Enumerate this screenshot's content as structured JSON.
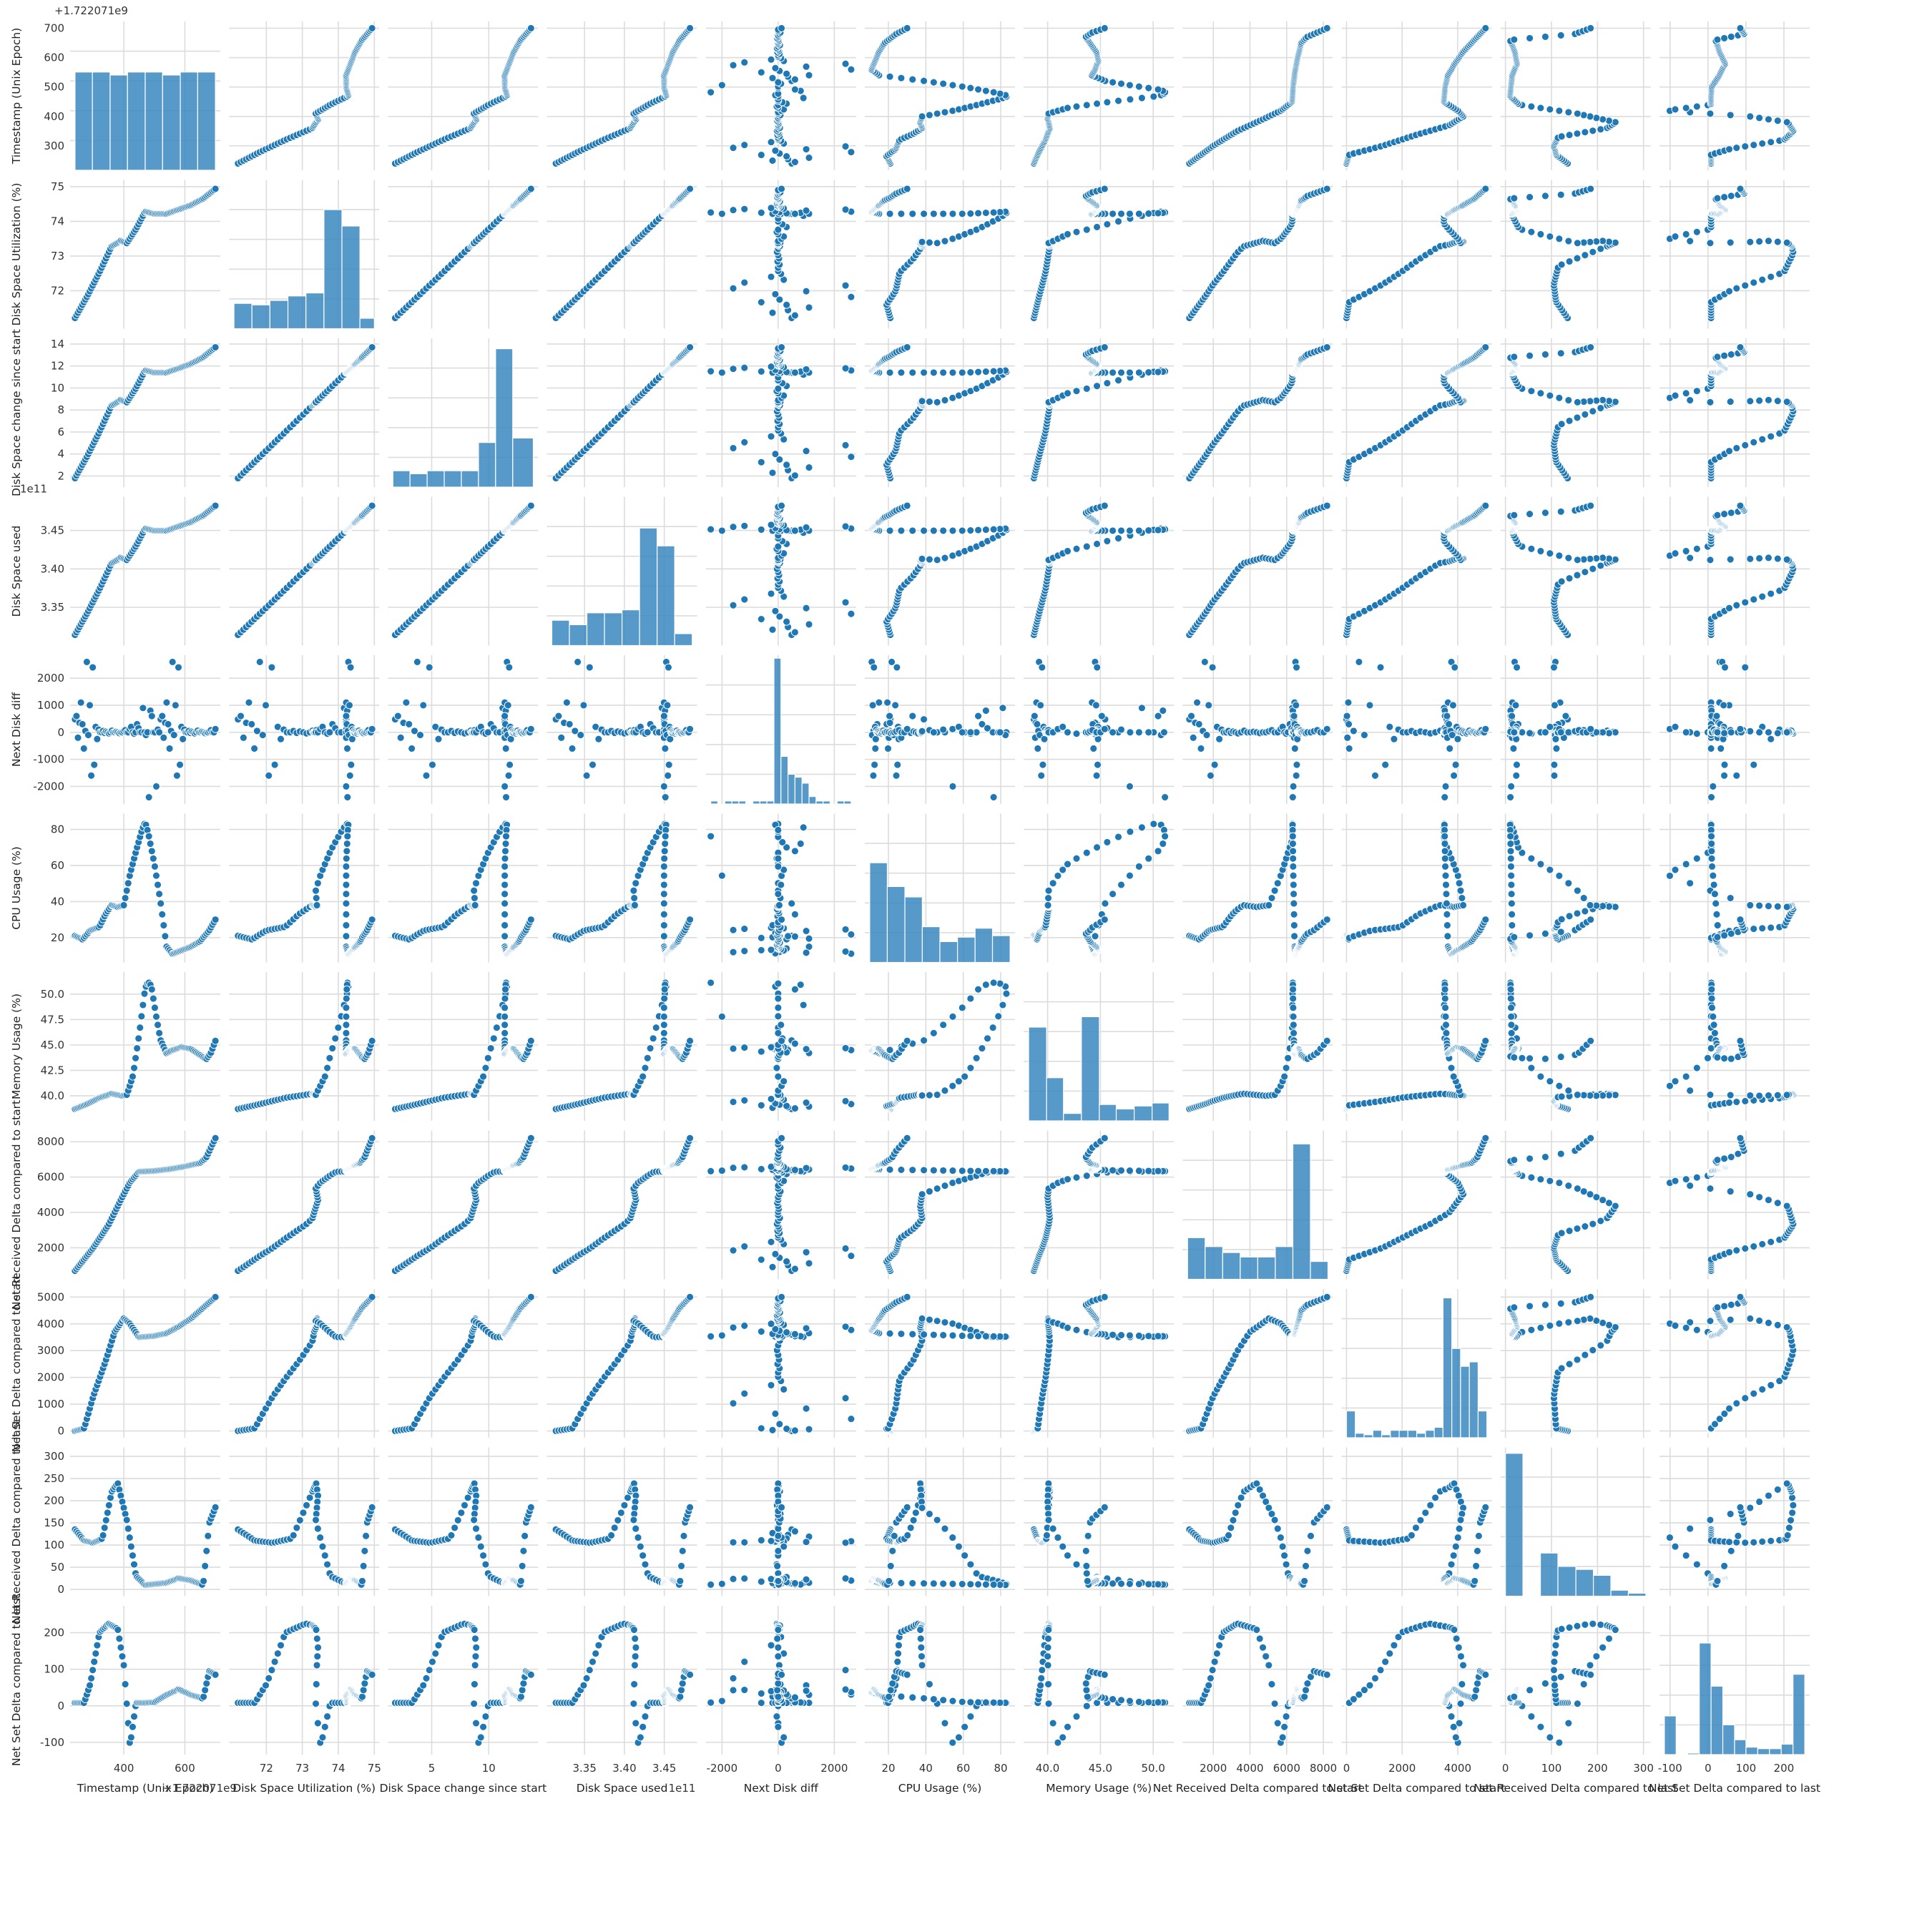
{
  "chart_data": {
    "type": "scatter",
    "kind": "pairplot",
    "diagonal": "histogram",
    "grid": true,
    "colors": {
      "marker": "#1f77b4",
      "bar": "#3a87c0",
      "grid": "#dcdcdc"
    },
    "variables": [
      {
        "key": "t",
        "label": "Timestamp (Unix Epoch)",
        "xlabel": "Timestamp (Unix Epoch)",
        "range": [
          240,
          700
        ],
        "ticks": [
          300,
          400,
          500,
          600,
          700
        ],
        "xticks": [
          400,
          600
        ],
        "offset": "+1.722071e9"
      },
      {
        "key": "u",
        "label": "Disk Space Utilization (%)",
        "range": [
          71.1,
          75
        ],
        "ticks": [
          72,
          73,
          74,
          75
        ]
      },
      {
        "key": "c",
        "label": "Disk Space change since start",
        "range": [
          1.6,
          13.9
        ],
        "ticks": [
          2,
          4,
          6,
          8,
          10,
          12,
          14
        ],
        "xticks": [
          5,
          10
        ]
      },
      {
        "key": "s",
        "label": "Disk Space used",
        "range": [
          3.309,
          3.485
        ],
        "ticks": [
          3.35,
          3.4,
          3.45
        ],
        "offset": "1e11"
      },
      {
        "key": "n",
        "label": "Next Disk diff",
        "range": [
          -2400,
          2600
        ],
        "ticks": [
          -2000,
          -1000,
          0,
          1000,
          2000
        ],
        "xticks": [
          -2000,
          0,
          2000
        ]
      },
      {
        "key": "cpu",
        "label": "CPU Usage (%)",
        "range": [
          10,
          85
        ],
        "ticks": [
          20,
          40,
          60,
          80
        ]
      },
      {
        "key": "m",
        "label": "Memory Usage (%)",
        "range": [
          38.2,
          51.5
        ],
        "ticks": [
          40.0,
          42.5,
          45.0,
          47.5,
          50.0
        ],
        "xticks": [
          40,
          45,
          50
        ],
        "yfmt": 1
      },
      {
        "key": "r",
        "label": "Net Received Delta compared to start",
        "range": [
          600,
          8250
        ],
        "ticks": [
          2000,
          4000,
          6000,
          8000
        ]
      },
      {
        "key": "ns",
        "label": "Net Set Delta compared to start",
        "range": [
          0,
          5050
        ],
        "ticks": [
          0,
          1000,
          2000,
          3000,
          4000,
          5000
        ],
        "xticks": [
          0,
          2000,
          4000
        ]
      },
      {
        "key": "rl",
        "label": "Net Received Delta compared to last",
        "range": [
          0,
          305
        ],
        "ticks": [
          0,
          50,
          100,
          150,
          200,
          250,
          300
        ],
        "xticks": [
          0,
          100,
          200,
          300
        ]
      },
      {
        "key": "sl",
        "label": "Net Set Delta compared to last",
        "range": [
          -115,
          255
        ],
        "ticks": [
          -100,
          0,
          100,
          200
        ],
        "xticks": [
          -100,
          0,
          100,
          200
        ]
      }
    ],
    "histograms": [
      {
        "bins": [
          [
            240,
            297,
            0.66
          ],
          [
            297,
            355,
            0.66
          ],
          [
            355,
            412,
            0.64
          ],
          [
            412,
            470,
            0.66
          ],
          [
            470,
            527,
            0.66
          ],
          [
            527,
            585,
            0.64
          ],
          [
            585,
            642,
            0.66
          ],
          [
            642,
            700,
            0.66
          ]
        ]
      },
      {
        "bins": [
          [
            71.1,
            71.6,
            0.17
          ],
          [
            71.6,
            72.1,
            0.16
          ],
          [
            72.1,
            72.6,
            0.19
          ],
          [
            72.6,
            73.1,
            0.22
          ],
          [
            73.1,
            73.6,
            0.24
          ],
          [
            73.6,
            74.1,
            0.8
          ],
          [
            74.1,
            74.6,
            0.69
          ],
          [
            74.6,
            75.0,
            0.07
          ]
        ]
      },
      {
        "bins": [
          [
            1.6,
            3.1,
            0.11
          ],
          [
            3.1,
            4.6,
            0.09
          ],
          [
            4.6,
            6.1,
            0.11
          ],
          [
            6.1,
            7.6,
            0.11
          ],
          [
            7.6,
            9.1,
            0.11
          ],
          [
            9.1,
            10.6,
            0.3
          ],
          [
            10.6,
            12.1,
            0.93
          ],
          [
            12.1,
            13.9,
            0.33
          ]
        ]
      },
      {
        "bins": [
          [
            3.309,
            3.331,
            0.17
          ],
          [
            3.331,
            3.353,
            0.14
          ],
          [
            3.353,
            3.375,
            0.22
          ],
          [
            3.375,
            3.397,
            0.22
          ],
          [
            3.397,
            3.419,
            0.24
          ],
          [
            3.419,
            3.441,
            0.79
          ],
          [
            3.441,
            3.463,
            0.67
          ],
          [
            3.463,
            3.485,
            0.08
          ]
        ]
      },
      {
        "bins": [
          [
            -2400,
            -2150,
            0.02
          ],
          [
            -2150,
            -1900,
            0.0
          ],
          [
            -1900,
            -1650,
            0.02
          ],
          [
            -1650,
            -1400,
            0.02
          ],
          [
            -1400,
            -1150,
            0.02
          ],
          [
            -1150,
            -900,
            0.0
          ],
          [
            -900,
            -650,
            0.02
          ],
          [
            -650,
            -400,
            0.02
          ],
          [
            -400,
            -150,
            0.02
          ],
          [
            -150,
            100,
            0.98
          ],
          [
            100,
            350,
            0.32
          ],
          [
            350,
            600,
            0.2
          ],
          [
            600,
            850,
            0.18
          ],
          [
            850,
            1100,
            0.14
          ],
          [
            1100,
            1350,
            0.05
          ],
          [
            1350,
            1600,
            0.02
          ],
          [
            1600,
            1850,
            0.02
          ],
          [
            1850,
            2100,
            0.0
          ],
          [
            2100,
            2350,
            0.02
          ],
          [
            2350,
            2600,
            0.02
          ]
        ]
      },
      {
        "bins": [
          [
            10,
            19.4,
            0.67
          ],
          [
            19.4,
            28.8,
            0.51
          ],
          [
            28.8,
            38.1,
            0.44
          ],
          [
            38.1,
            47.5,
            0.24
          ],
          [
            47.5,
            56.9,
            0.14
          ],
          [
            56.9,
            66.3,
            0.17
          ],
          [
            66.3,
            75.6,
            0.23
          ],
          [
            75.6,
            85,
            0.18
          ]
        ]
      },
      {
        "bins": [
          [
            38.2,
            39.9,
            0.63
          ],
          [
            39.9,
            41.5,
            0.29
          ],
          [
            41.5,
            43.2,
            0.05
          ],
          [
            43.2,
            44.9,
            0.7
          ],
          [
            44.9,
            46.5,
            0.11
          ],
          [
            46.5,
            48.2,
            0.08
          ],
          [
            48.2,
            49.9,
            0.1
          ],
          [
            49.9,
            51.5,
            0.12
          ]
        ]
      },
      {
        "bins": [
          [
            600,
            1556,
            0.28
          ],
          [
            1556,
            2513,
            0.22
          ],
          [
            2513,
            3469,
            0.18
          ],
          [
            3469,
            4425,
            0.15
          ],
          [
            4425,
            5381,
            0.15
          ],
          [
            5381,
            6338,
            0.22
          ],
          [
            6338,
            7294,
            0.91
          ],
          [
            7294,
            8250,
            0.12
          ]
        ]
      },
      {
        "bins": [
          [
            0,
            316,
            0.18
          ],
          [
            316,
            631,
            0.03
          ],
          [
            631,
            947,
            0.02
          ],
          [
            947,
            1263,
            0.05
          ],
          [
            1263,
            1578,
            0.02
          ],
          [
            1578,
            1894,
            0.05
          ],
          [
            1894,
            2209,
            0.05
          ],
          [
            2209,
            2525,
            0.05
          ],
          [
            2525,
            2841,
            0.03
          ],
          [
            2841,
            3156,
            0.05
          ],
          [
            3156,
            3472,
            0.07
          ],
          [
            3472,
            3788,
            0.94
          ],
          [
            3788,
            4103,
            0.6
          ],
          [
            4103,
            4419,
            0.48
          ],
          [
            4419,
            4734,
            0.51
          ],
          [
            4734,
            5050,
            0.18
          ]
        ]
      },
      {
        "bins": [
          [
            0,
            38,
            0.96
          ],
          [
            38,
            76,
            0.0
          ],
          [
            76,
            114,
            0.29
          ],
          [
            114,
            153,
            0.2
          ],
          [
            153,
            191,
            0.18
          ],
          [
            191,
            229,
            0.14
          ],
          [
            229,
            267,
            0.04
          ],
          [
            267,
            305,
            0.02
          ]
        ]
      },
      {
        "bins": [
          [
            -115,
            -84,
            0.26
          ],
          [
            -84,
            -54,
            0.0
          ],
          [
            -54,
            -23,
            0.01
          ],
          [
            -23,
            8,
            0.75
          ],
          [
            8,
            39,
            0.46
          ],
          [
            39,
            70,
            0.2
          ],
          [
            70,
            100,
            0.1
          ],
          [
            100,
            131,
            0.05
          ],
          [
            131,
            162,
            0.04
          ],
          [
            162,
            193,
            0.04
          ],
          [
            193,
            224,
            0.07
          ],
          [
            224,
            255,
            0.54
          ]
        ]
      }
    ]
  }
}
